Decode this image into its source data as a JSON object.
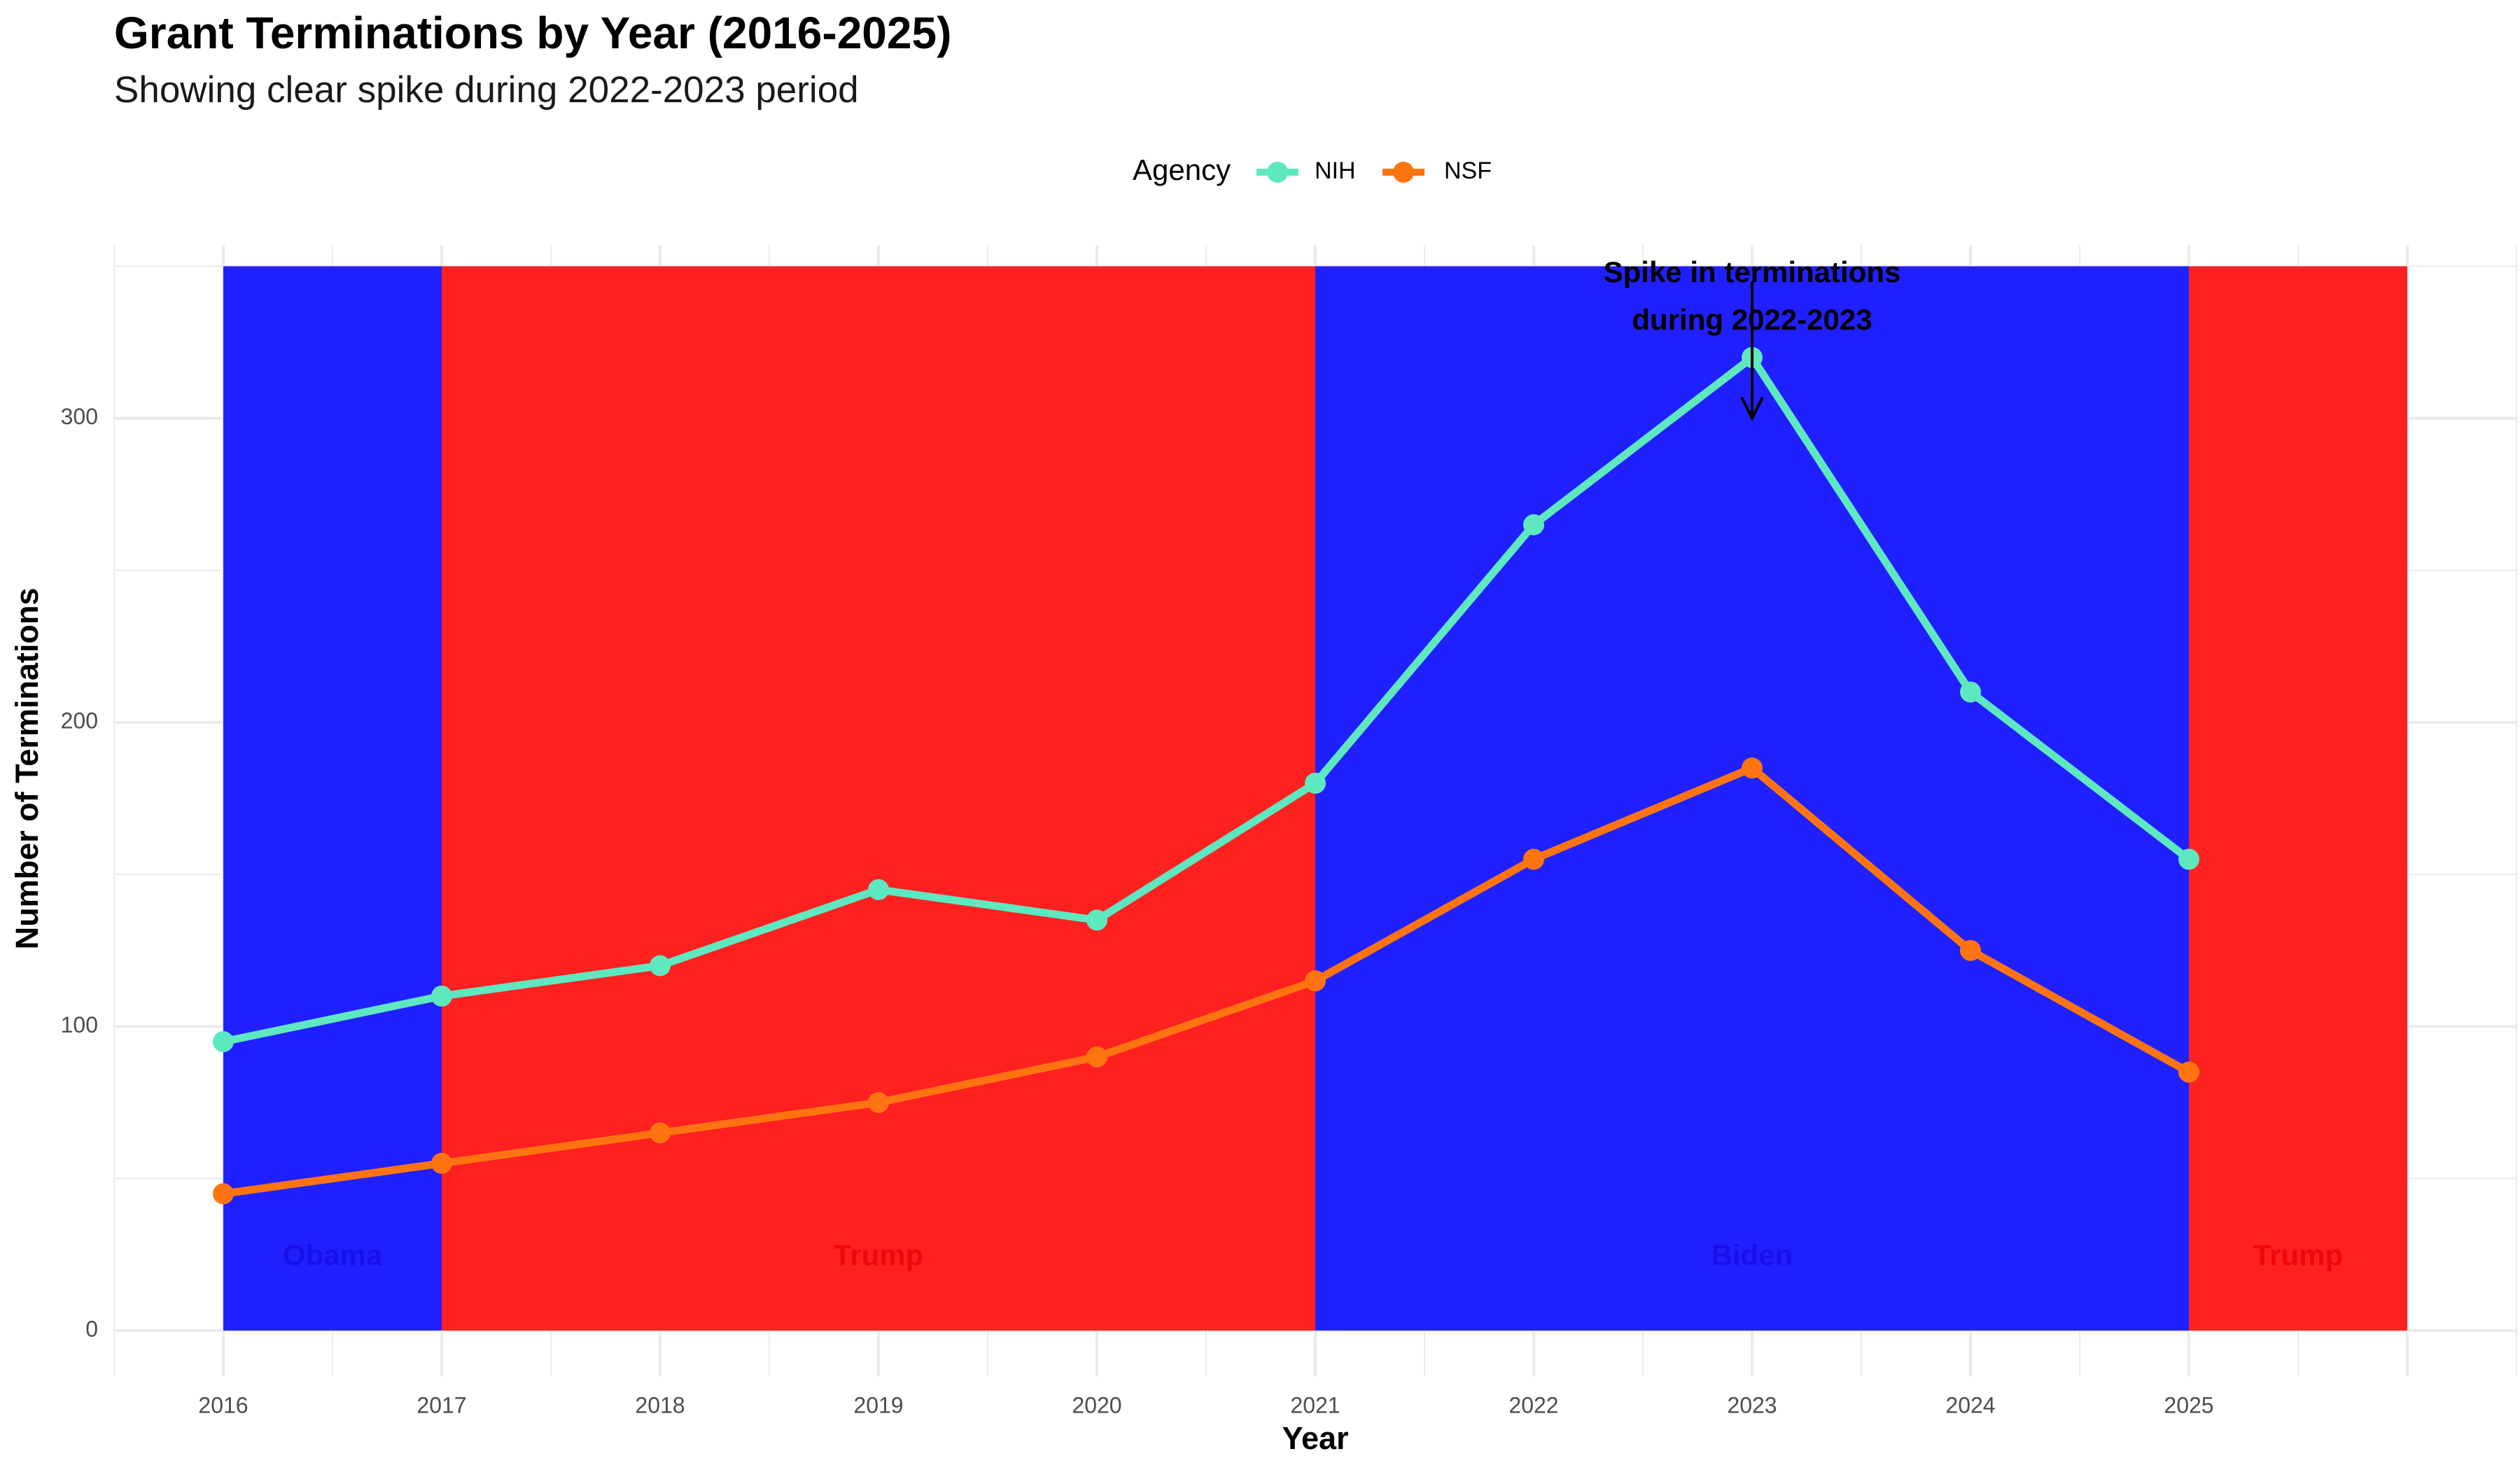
{
  "title": "Grant Terminations by Year (2016-2025)",
  "subtitle": "Showing clear spike during 2022-2023 period",
  "chart_data": {
    "type": "line",
    "title": "Grant Terminations by Year (2016-2025)",
    "subtitle": "Showing clear spike during 2022-2023 period",
    "xlabel": "Year",
    "ylabel": "Number of Terminations",
    "x": [
      2016,
      2017,
      2018,
      2019,
      2020,
      2021,
      2022,
      2023,
      2024,
      2025
    ],
    "x_ticks": [
      "2016",
      "2017",
      "2018",
      "2019",
      "2020",
      "2021",
      "2022",
      "2023",
      "2024",
      "2025"
    ],
    "y_ticks": [
      "0",
      "100",
      "200",
      "300"
    ],
    "xlim": [
      2015.5,
      2026.5
    ],
    "ylim": [
      -15,
      357
    ],
    "grid": true,
    "legend": {
      "title": "Agency",
      "position": "top"
    },
    "series": [
      {
        "name": "NIH",
        "color": "#5ee8c0",
        "values": [
          95,
          110,
          120,
          145,
          135,
          180,
          265,
          320,
          210,
          155
        ]
      },
      {
        "name": "NSF",
        "color": "#ff7410",
        "values": [
          45,
          55,
          65,
          75,
          90,
          115,
          155,
          185,
          125,
          85
        ]
      }
    ],
    "background_periods": [
      {
        "label": "Obama",
        "start": 2016,
        "end": 2017,
        "fill": "#2020ff",
        "label_color": "#1a10e8"
      },
      {
        "label": "Trump",
        "start": 2017,
        "end": 2021,
        "fill": "#ff2020",
        "label_color": "#f00808"
      },
      {
        "label": "Biden",
        "start": 2021,
        "end": 2025,
        "fill": "#2020ff",
        "label_color": "#1a10e8"
      },
      {
        "label": "Trump",
        "start": 2025,
        "end": 2026,
        "fill": "#ff2020",
        "label_color": "#f00808"
      }
    ],
    "annotation": {
      "lines": [
        "Spike in terminations",
        "during 2022-2023"
      ],
      "x": 2023,
      "arrow_from_y": 345,
      "arrow_to_y": 300
    }
  }
}
